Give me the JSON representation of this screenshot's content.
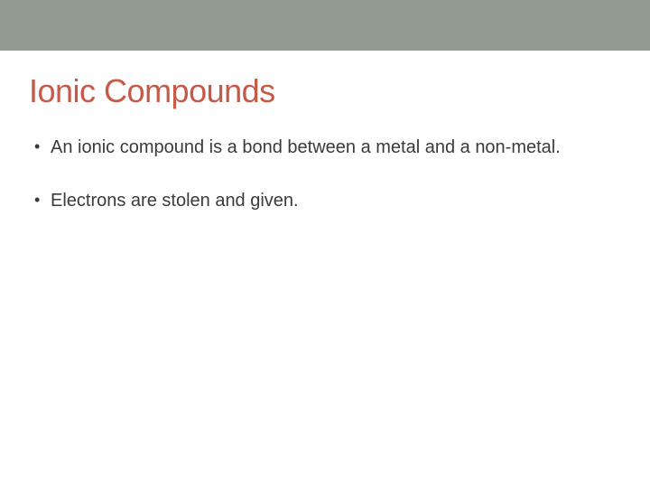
{
  "slide": {
    "title": "Ionic Compounds",
    "title_color": "#c65a48",
    "title_fontsize": 36,
    "body_color": "#3a3a3a",
    "body_fontsize": 20,
    "top_bar_color": "#8f9b8c",
    "background_color": "#ffffff",
    "bullets": [
      "An ionic compound is a bond between a metal and a non-metal.",
      "Electrons are stolen and given."
    ]
  }
}
